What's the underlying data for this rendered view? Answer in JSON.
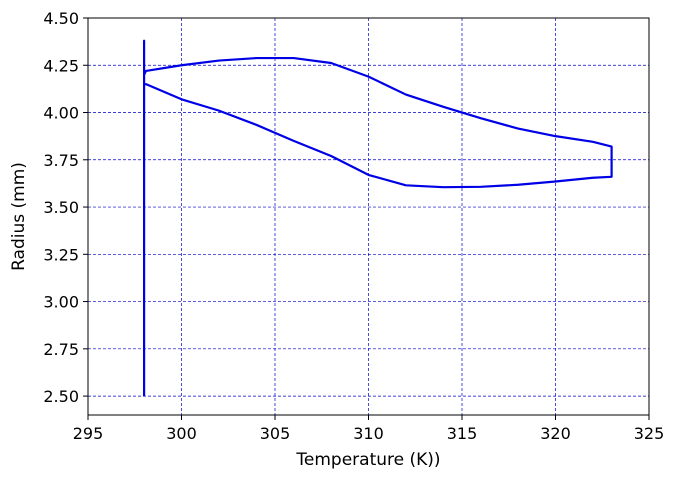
{
  "chart_data": {
    "type": "line",
    "title": "",
    "xlabel": "Temperature (K))",
    "ylabel": "Radius (mm)",
    "xlim": [
      295,
      325
    ],
    "ylim": [
      2.4,
      4.5
    ],
    "xticks": [
      295,
      300,
      305,
      310,
      315,
      320,
      325
    ],
    "yticks": [
      2.5,
      2.75,
      3.0,
      3.25,
      3.5,
      3.75,
      4.0,
      4.25,
      4.5
    ],
    "xtick_labels": [
      "295",
      "300",
      "305",
      "310",
      "315",
      "320",
      "325"
    ],
    "ytick_labels": [
      "2.50",
      "2.75",
      "3.00",
      "3.25",
      "3.50",
      "3.75",
      "4.00",
      "4.25",
      "4.50"
    ],
    "grid": true,
    "grid_color": "#0000cc",
    "grid_style": "dashed",
    "series": [
      {
        "color": "#0000e6",
        "x": [
          298.0,
          298.0,
          298.0,
          298.0,
          298.1,
          300.0,
          302.0,
          304.0,
          306.0,
          308.0,
          310.0,
          312.0,
          314.0,
          316.0,
          318.0,
          320.0,
          322.0,
          323.0,
          323.0,
          322.0,
          320.0,
          318.0,
          316.0,
          314.0,
          312.0,
          310.0,
          308.0,
          306.0,
          304.0,
          302.0,
          300.0,
          298.1,
          298.0,
          298.0
        ],
        "y": [
          2.5,
          4.15,
          4.38,
          4.2,
          4.22,
          4.25,
          4.275,
          4.288,
          4.288,
          4.262,
          4.19,
          4.095,
          4.03,
          3.97,
          3.915,
          3.875,
          3.845,
          3.82,
          3.66,
          3.655,
          3.635,
          3.618,
          3.607,
          3.605,
          3.615,
          3.67,
          3.77,
          3.85,
          3.935,
          4.01,
          4.07,
          4.15,
          4.15,
          4.15
        ]
      }
    ]
  }
}
